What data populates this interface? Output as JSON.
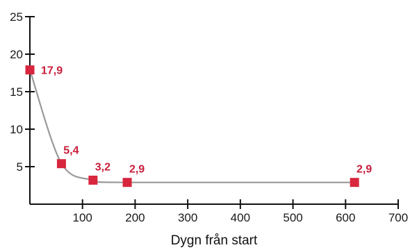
{
  "chart_data": {
    "type": "line",
    "xlabel": "Dygn från start",
    "ylabel": "",
    "xlim": [
      0,
      700
    ],
    "ylim": [
      0,
      25
    ],
    "x_ticks": [
      {
        "value": 100,
        "label": "100"
      },
      {
        "value": 200,
        "label": "200"
      },
      {
        "value": 300,
        "label": "300"
      },
      {
        "value": 400,
        "label": "400"
      },
      {
        "value": 500,
        "label": "500"
      },
      {
        "value": 600,
        "label": "600"
      },
      {
        "value": 700,
        "label": "700"
      }
    ],
    "y_ticks": [
      {
        "value": 5,
        "label": "5"
      },
      {
        "value": 10,
        "label": "10"
      },
      {
        "value": 15,
        "label": "15"
      },
      {
        "value": 20,
        "label": "20"
      },
      {
        "value": 25,
        "label": "25"
      }
    ],
    "grid": false,
    "series": [
      {
        "x": [
          0,
          60,
          120,
          185,
          617
        ],
        "y": [
          17.9,
          5.4,
          3.2,
          2.9,
          2.9
        ],
        "labels": [
          "17,9",
          "5,4",
          "3,2",
          "2,9",
          "2,9"
        ]
      }
    ],
    "colors": {
      "marker": "#d7263d",
      "line": "#999999",
      "label": "#c81e3a",
      "axis": "#111111"
    }
  }
}
